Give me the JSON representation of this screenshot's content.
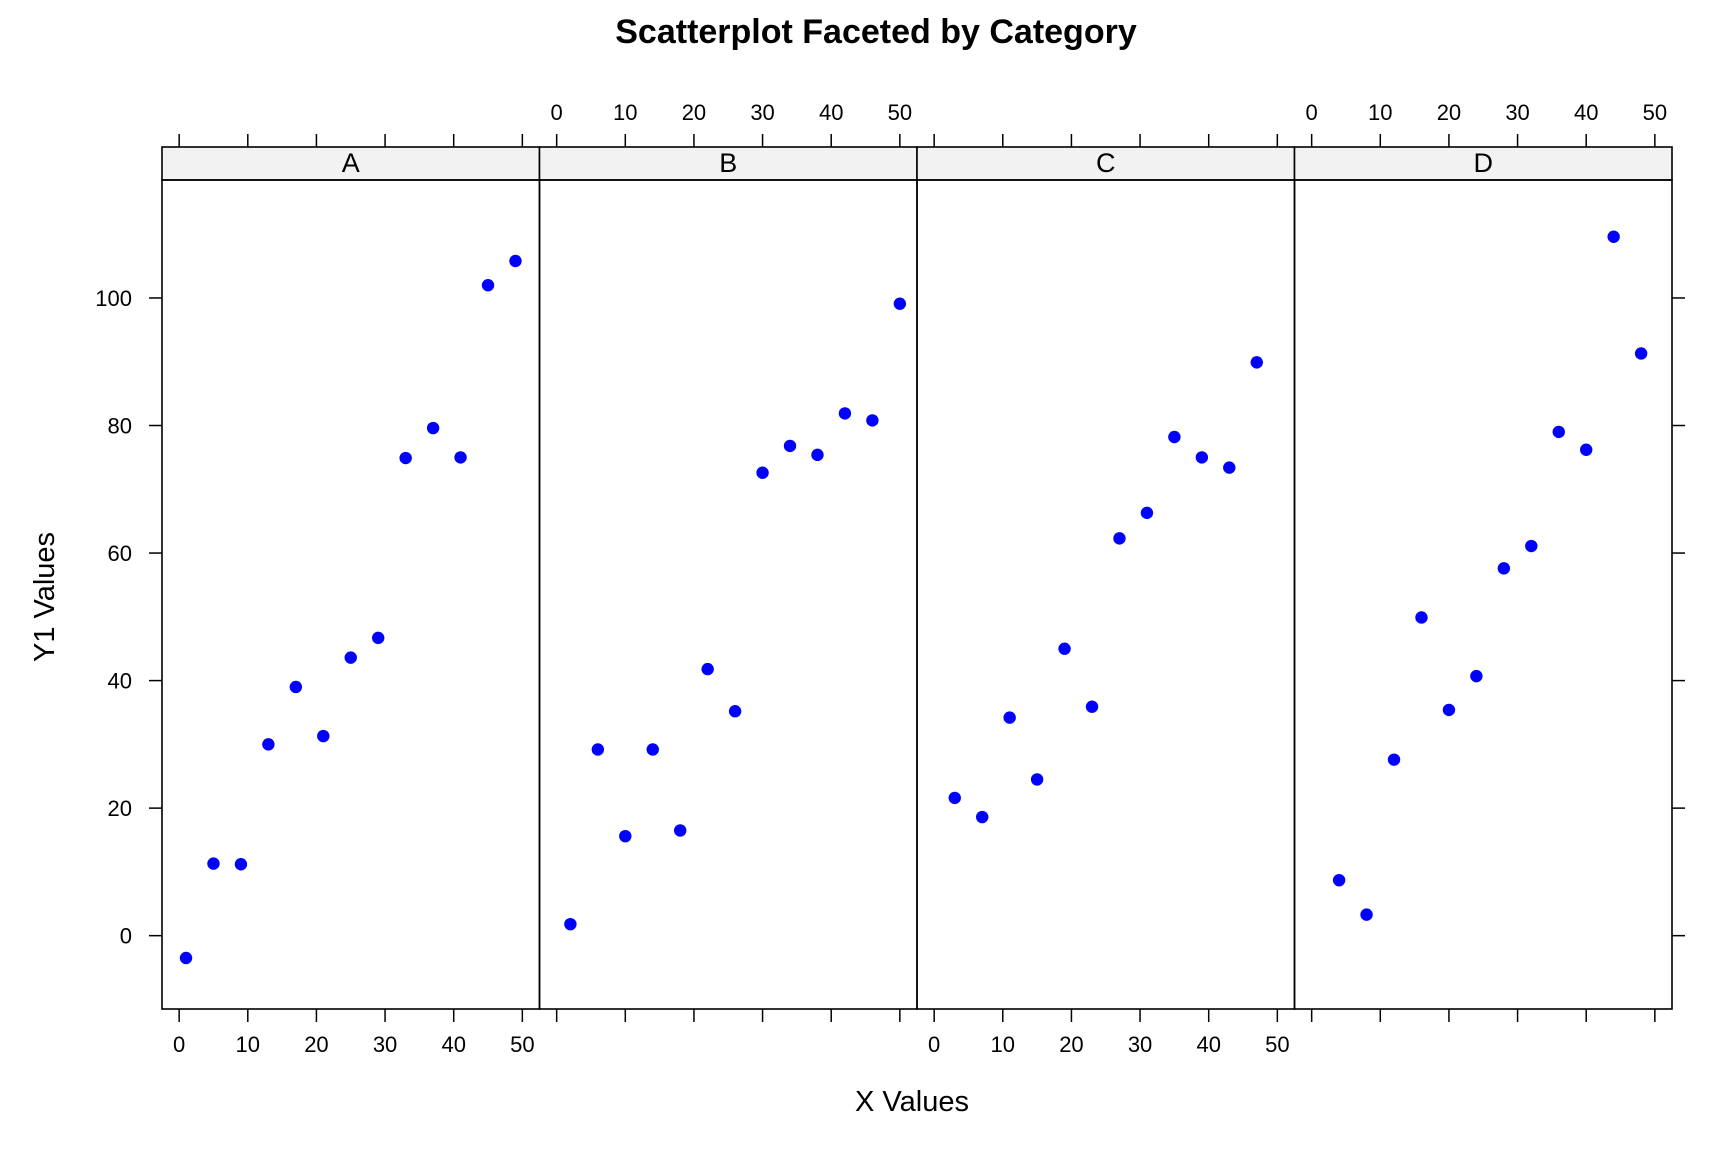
{
  "chart_data": {
    "type": "scatter",
    "title": "Scatterplot Faceted by Category",
    "xlabel": "X Values",
    "ylabel": "Y1 Values",
    "xlim": [
      -2.5,
      52.5
    ],
    "ylim": [
      -11.5,
      118.5
    ],
    "xticks": [
      0,
      10,
      20,
      30,
      40,
      50
    ],
    "yticks": [
      0,
      20,
      40,
      60,
      80,
      100
    ],
    "marker_color": "#0000ff",
    "panels": [
      {
        "name": "A",
        "points": [
          {
            "x": 1,
            "y": -3.5
          },
          {
            "x": 5,
            "y": 11.3
          },
          {
            "x": 9,
            "y": 11.2
          },
          {
            "x": 13,
            "y": 30.0
          },
          {
            "x": 17,
            "y": 39.0
          },
          {
            "x": 21,
            "y": 31.3
          },
          {
            "x": 25,
            "y": 43.6
          },
          {
            "x": 29,
            "y": 46.7
          },
          {
            "x": 33,
            "y": 74.9
          },
          {
            "x": 37,
            "y": 79.6
          },
          {
            "x": 41,
            "y": 75.0
          },
          {
            "x": 45,
            "y": 102.0
          },
          {
            "x": 49,
            "y": 105.8
          }
        ]
      },
      {
        "name": "B",
        "points": [
          {
            "x": 2,
            "y": 1.8
          },
          {
            "x": 6,
            "y": 29.2
          },
          {
            "x": 10,
            "y": 15.6
          },
          {
            "x": 14,
            "y": 29.2
          },
          {
            "x": 18,
            "y": 16.5
          },
          {
            "x": 22,
            "y": 41.8
          },
          {
            "x": 26,
            "y": 35.2
          },
          {
            "x": 30,
            "y": 72.6
          },
          {
            "x": 34,
            "y": 76.8
          },
          {
            "x": 38,
            "y": 75.4
          },
          {
            "x": 42,
            "y": 81.9
          },
          {
            "x": 46,
            "y": 80.8
          },
          {
            "x": 50,
            "y": 99.1
          }
        ]
      },
      {
        "name": "C",
        "points": [
          {
            "x": 3,
            "y": 21.6
          },
          {
            "x": 7,
            "y": 18.6
          },
          {
            "x": 11,
            "y": 34.2
          },
          {
            "x": 15,
            "y": 24.5
          },
          {
            "x": 19,
            "y": 45.0
          },
          {
            "x": 23,
            "y": 35.9
          },
          {
            "x": 27,
            "y": 62.3
          },
          {
            "x": 31,
            "y": 66.3
          },
          {
            "x": 35,
            "y": 78.2
          },
          {
            "x": 39,
            "y": 75.0
          },
          {
            "x": 43,
            "y": 73.4
          },
          {
            "x": 47,
            "y": 89.9
          }
        ]
      },
      {
        "name": "D",
        "points": [
          {
            "x": 4,
            "y": 8.7
          },
          {
            "x": 8,
            "y": 3.3
          },
          {
            "x": 12,
            "y": 27.6
          },
          {
            "x": 16,
            "y": 49.9
          },
          {
            "x": 20,
            "y": 35.4
          },
          {
            "x": 24,
            "y": 40.7
          },
          {
            "x": 28,
            "y": 57.6
          },
          {
            "x": 32,
            "y": 61.1
          },
          {
            "x": 36,
            "y": 79.0
          },
          {
            "x": 40,
            "y": 76.2
          },
          {
            "x": 44,
            "y": 109.6
          },
          {
            "x": 48,
            "y": 91.3
          }
        ]
      }
    ]
  }
}
